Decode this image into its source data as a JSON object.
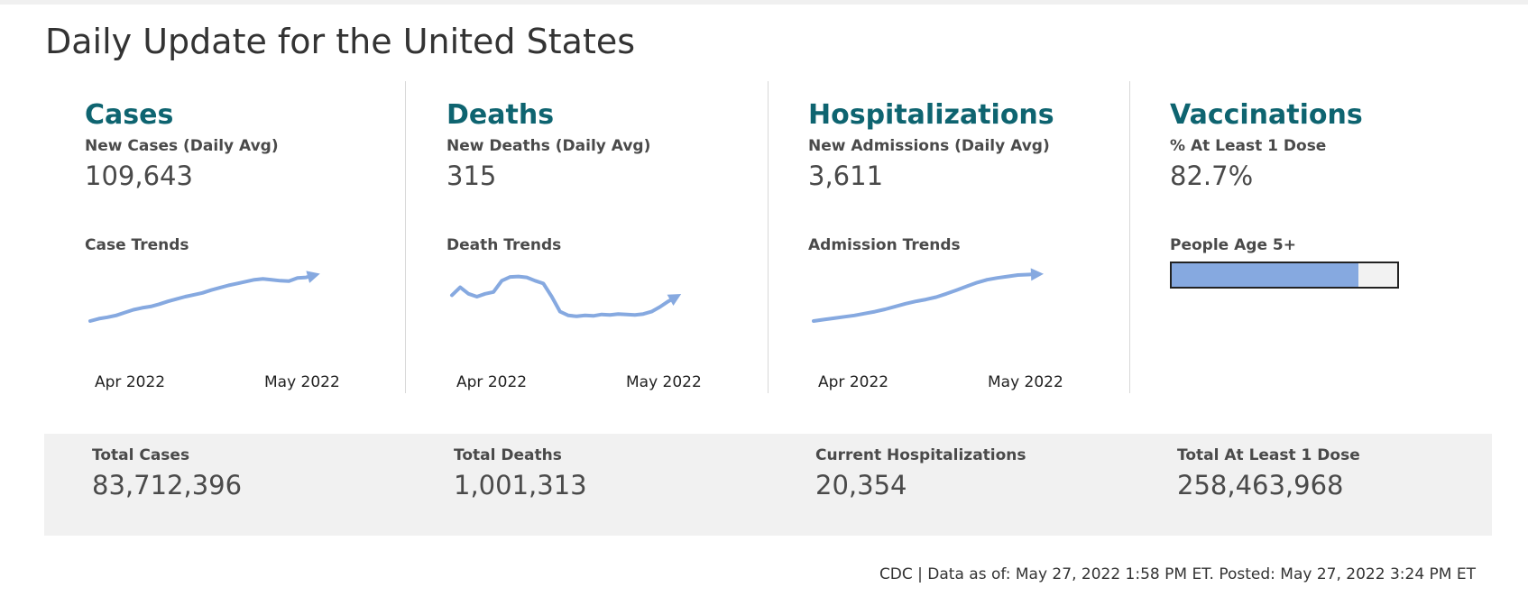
{
  "page": {
    "title": "Daily Update for the United States"
  },
  "panels": {
    "cases": {
      "title": "Cases",
      "metric_label": "New Cases (Daily Avg)",
      "metric_value": "109,643",
      "trend_label": "Case Trends",
      "axis_start": "Apr 2022",
      "axis_end": "May 2022"
    },
    "deaths": {
      "title": "Deaths",
      "metric_label": "New Deaths (Daily Avg)",
      "metric_value": "315",
      "trend_label": "Death Trends",
      "axis_start": "Apr 2022",
      "axis_end": "May 2022"
    },
    "hospitalizations": {
      "title": "Hospitalizations",
      "metric_label": "New Admissions (Daily Avg)",
      "metric_value": "3,611",
      "trend_label": "Admission Trends",
      "axis_start": "Apr 2022",
      "axis_end": "May 2022"
    },
    "vaccinations": {
      "title": "Vaccinations",
      "metric_label": "% At Least 1 Dose",
      "metric_value": "82.7%",
      "trend_label": "People Age 5+",
      "progress_fraction": 0.827
    }
  },
  "totals": {
    "cases": {
      "label": "Total Cases",
      "value": "83,712,396"
    },
    "deaths": {
      "label": "Total Deaths",
      "value": "1,001,313"
    },
    "hospitalizations": {
      "label": "Current Hospitalizations",
      "value": "20,354"
    },
    "doses": {
      "label": "Total At Least 1 Dose",
      "value": "258,463,968"
    }
  },
  "footer": {
    "text": "CDC | Data as of: May 27, 2022 1:58 PM ET. Posted: May 27, 2022 3:24 PM ET"
  },
  "colors": {
    "accent": "#0e6470",
    "trend_line": "#86a9e0",
    "band": "#f1f1f1"
  },
  "chart_data": [
    {
      "type": "line",
      "name": "cases-trend",
      "x_tick_labels": [
        "Apr 2022",
        "May 2022"
      ],
      "values": [
        0.0,
        0.05,
        0.08,
        0.12,
        0.18,
        0.24,
        0.28,
        0.31,
        0.36,
        0.42,
        0.47,
        0.52,
        0.56,
        0.6,
        0.66,
        0.71,
        0.76,
        0.8,
        0.84,
        0.88,
        0.9,
        0.88,
        0.86,
        0.85,
        0.92,
        0.93,
        0.98
      ]
    },
    {
      "type": "line",
      "name": "deaths-trend",
      "x_tick_labels": [
        "Apr 2022",
        "May 2022"
      ],
      "values": [
        0.55,
        0.72,
        0.58,
        0.52,
        0.58,
        0.62,
        0.86,
        0.94,
        0.95,
        0.93,
        0.86,
        0.8,
        0.52,
        0.2,
        0.12,
        0.1,
        0.12,
        0.11,
        0.14,
        0.13,
        0.15,
        0.14,
        0.13,
        0.15,
        0.2,
        0.3,
        0.42,
        0.52
      ]
    },
    {
      "type": "line",
      "name": "admissions-trend",
      "x_tick_labels": [
        "Apr 2022",
        "May 2022"
      ],
      "values": [
        0.0,
        0.03,
        0.06,
        0.09,
        0.12,
        0.16,
        0.2,
        0.25,
        0.31,
        0.37,
        0.42,
        0.46,
        0.51,
        0.58,
        0.66,
        0.74,
        0.82,
        0.88,
        0.92,
        0.95,
        0.98,
        0.99,
        1.0
      ]
    }
  ]
}
